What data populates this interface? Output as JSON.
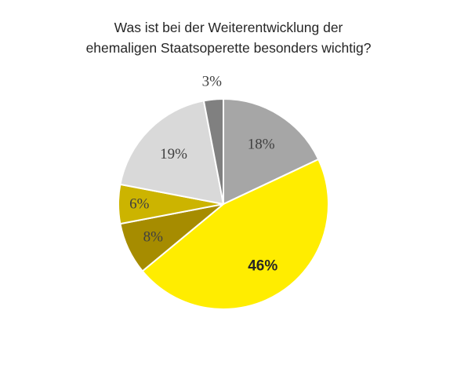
{
  "title_lines": [
    "Was ist bei der Weiterentwicklung der",
    "ehemaligen Staatsoperette besonders wichtig?"
  ],
  "chart_data": {
    "type": "pie",
    "title": "Was ist bei der Weiterentwicklung der ehemaligen Staatsoperette besonders wichtig?",
    "start": "top, clockwise",
    "slices": [
      {
        "value": 18,
        "label": "18%",
        "color": "#a6a6a6"
      },
      {
        "value": 46,
        "label": "46%",
        "color": "#ffed00"
      },
      {
        "value": 8,
        "label": "8%",
        "color": "#a68c00"
      },
      {
        "value": 6,
        "label": "6%",
        "color": "#ccb400"
      },
      {
        "value": 19,
        "label": "19%",
        "color": "#d9d9d9"
      },
      {
        "value": 3,
        "label": "3%",
        "color": "#808080"
      }
    ]
  }
}
